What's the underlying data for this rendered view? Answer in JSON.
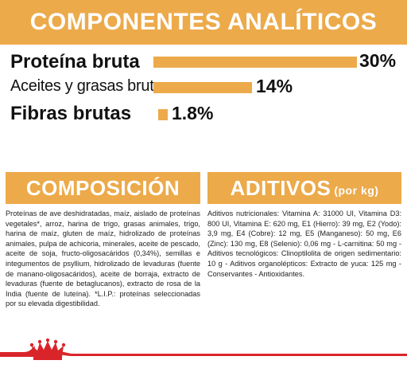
{
  "analytic": {
    "title": "COMPONENTES ANALÍTICOS",
    "rows": [
      {
        "label": "Proteína bruta",
        "value": 30,
        "pct_text": "30%"
      },
      {
        "label": "Aceites y grasas brutos",
        "value": 14,
        "pct_text": "14%"
      },
      {
        "label": "Fibras brutas",
        "value": 1.8,
        "pct_text": "1.8%"
      }
    ]
  },
  "composition": {
    "title": "COMPOSICIÓN",
    "text": "Proteínas de ave deshidratadas, maíz, aislado de proteínas vegetales*, arroz, harina de trigo, grasas animales, trigo, harina de maíz, gluten de maíz, hidrolizado de proteínas animales, pulpa de achicoria, minerales, aceite de pescado, aceite de soja, fructo-oligosacáridos (0,34%), semillas e integumentos de psyllium, hidrolizado de levaduras (fuente de manano-oligosacáridos), aceite de borraja, extracto de levaduras (fuente de betaglucanos), extracto de rosa de la India (fuente de luteína). *L.I.P.: proteínas seleccionadas por su elevada digestibilidad."
  },
  "additives": {
    "title": "ADITIVOS",
    "title_small": "(por kg)",
    "text": "Aditivos nutricionales: Vitamina A: 31000 UI, Vitamina D3: 800 UI, Vitamina E: 620 mg, E1 (Hierro): 39 mg, E2 (Yodo): 3,9 mg, E4 (Cobre): 12 mg, E5 (Manganeso): 50 mg, E6 (Zinc): 130 mg, E8 (Selenio): 0,06 mg - L-carnitina: 50 mg - Aditivos tecnológicos: Clinoptilolita de origen sedimentario: 10 g - Aditivos organolépticos: Extracto de yuca: 125 mg - Conservantes - Antioxidantes."
  },
  "colors": {
    "accent": "#ecaa4a",
    "brand_red": "#d9252a"
  },
  "icons": {
    "brand": "royal-canin-crown-logo-icon"
  }
}
